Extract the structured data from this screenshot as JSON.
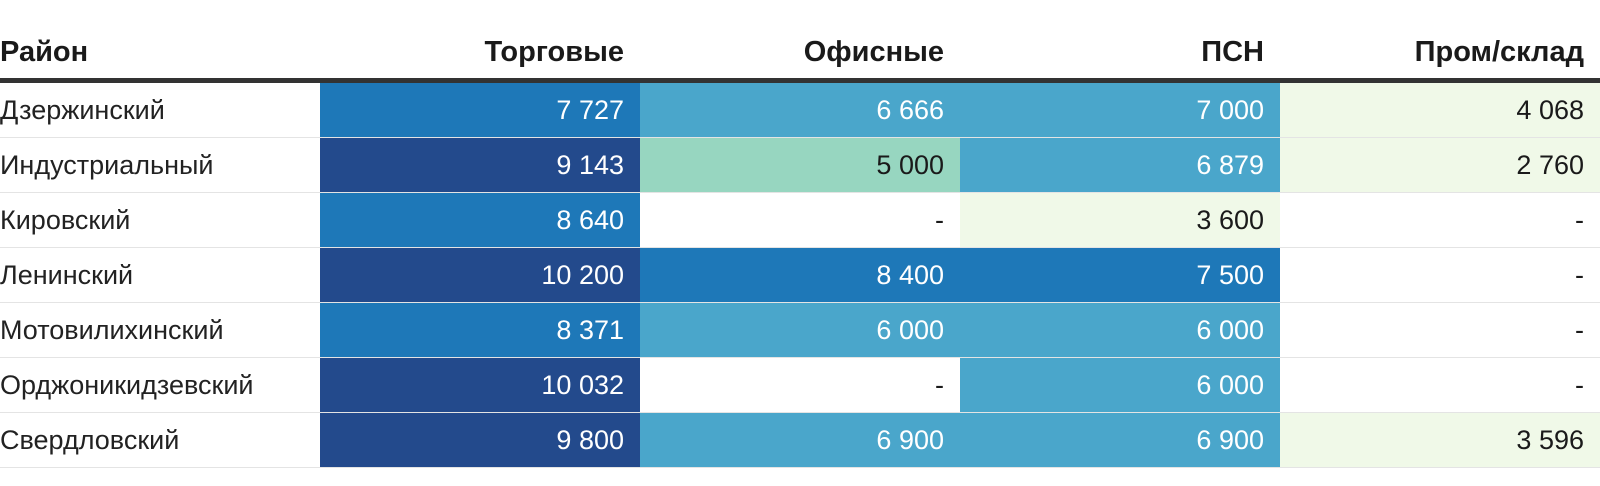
{
  "chart_data": {
    "type": "heatmap",
    "columns": [
      "Район",
      "Торговые",
      "Офисные",
      "ПСН",
      "Пром/склад"
    ],
    "rows": [
      {
        "district": "Дзержинский",
        "values": [
          7727,
          6666,
          7000,
          4068
        ],
        "display": [
          "7 727",
          "6 666",
          "7 000",
          "4 068"
        ]
      },
      {
        "district": "Индустриальный",
        "values": [
          9143,
          5000,
          6879,
          2760
        ],
        "display": [
          "9 143",
          "5 000",
          "6 879",
          "2 760"
        ]
      },
      {
        "district": "Кировский",
        "values": [
          8640,
          null,
          3600,
          null
        ],
        "display": [
          "8 640",
          "-",
          "3 600",
          "-"
        ]
      },
      {
        "district": "Ленинский",
        "values": [
          10200,
          8400,
          7500,
          null
        ],
        "display": [
          "10 200",
          "8 400",
          "7 500",
          "-"
        ]
      },
      {
        "district": "Мотовилихинский",
        "values": [
          8371,
          6000,
          6000,
          null
        ],
        "display": [
          "8 371",
          "6 000",
          "6 000",
          "-"
        ]
      },
      {
        "district": "Орджоникидзевский",
        "values": [
          10032,
          null,
          6000,
          null
        ],
        "display": [
          "10 032",
          "-",
          "6 000",
          "-"
        ]
      },
      {
        "district": "Свердловский",
        "values": [
          9800,
          6900,
          6900,
          3596
        ],
        "display": [
          "9 800",
          "6 900",
          "6 900",
          "3 596"
        ]
      }
    ],
    "color_scale": {
      "thresholds": [
        5000,
        6000,
        7500,
        9000
      ],
      "colors": [
        "#f0f9e8",
        "#97d6c0",
        "#4aa6cb",
        "#1e78b8",
        "#234a8c"
      ],
      "empty_color": "#ffffff",
      "dark_text_color": "#1a1a1a",
      "light_text_color": "#ffffff"
    }
  }
}
